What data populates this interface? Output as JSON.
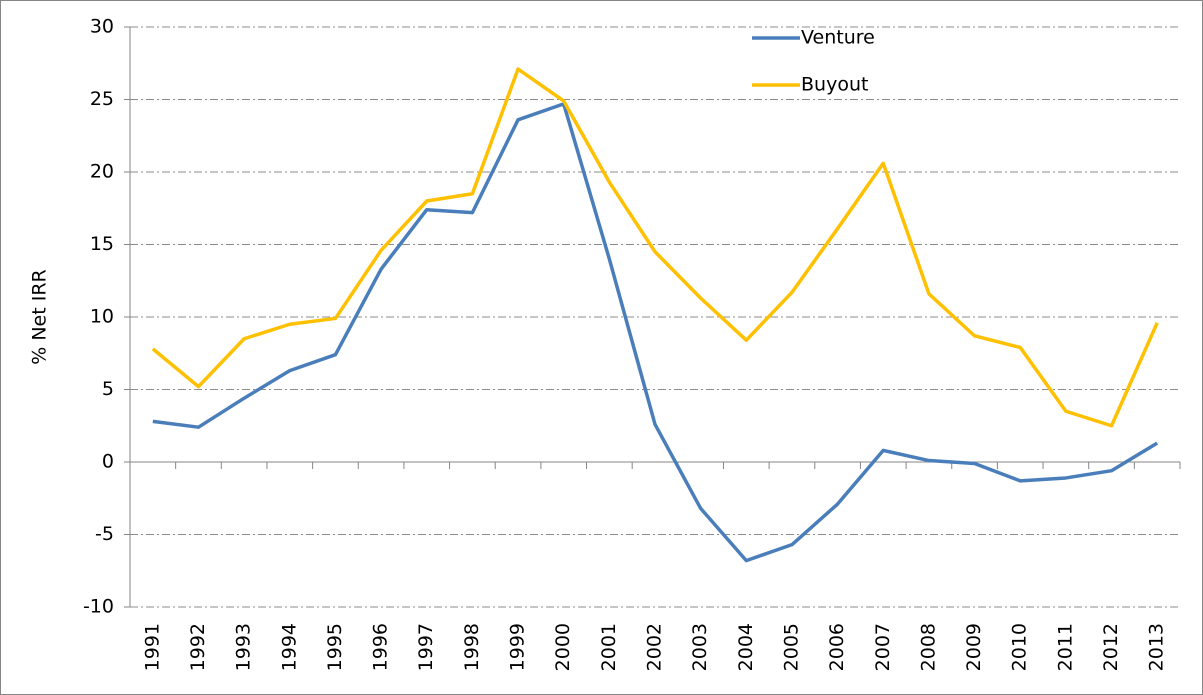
{
  "chart_data": {
    "type": "line",
    "y_label": "% Net IRR",
    "categories": [
      "1991",
      "1992",
      "1993",
      "1994",
      "1995",
      "1996",
      "1997",
      "1998",
      "1999",
      "2000",
      "2001",
      "2002",
      "2003",
      "2004",
      "2005",
      "2006",
      "2007",
      "2008",
      "2009",
      "2010",
      "2011",
      "2012",
      "2013"
    ],
    "series": [
      {
        "name": "Venture",
        "color": "#4a7ebb",
        "values": [
          2.8,
          2.4,
          4.4,
          6.3,
          7.4,
          13.3,
          17.4,
          17.2,
          23.6,
          24.7,
          14.0,
          2.6,
          -3.2,
          -6.8,
          -5.7,
          -2.9,
          0.8,
          0.1,
          -0.1,
          -1.3,
          -1.1,
          -0.6,
          1.3
        ]
      },
      {
        "name": "Buyout",
        "color": "#ffc000",
        "values": [
          7.8,
          5.2,
          8.5,
          9.5,
          9.9,
          14.6,
          18.0,
          18.5,
          27.1,
          24.9,
          19.3,
          14.5,
          11.3,
          8.4,
          11.7,
          16.1,
          20.6,
          11.6,
          8.7,
          7.9,
          3.5,
          2.5,
          9.6
        ]
      }
    ],
    "ylim": [
      -10,
      30
    ],
    "yticks": [
      -10,
      -5,
      0,
      5,
      10,
      15,
      20,
      25,
      30
    ],
    "grid": true,
    "legend": "top"
  }
}
